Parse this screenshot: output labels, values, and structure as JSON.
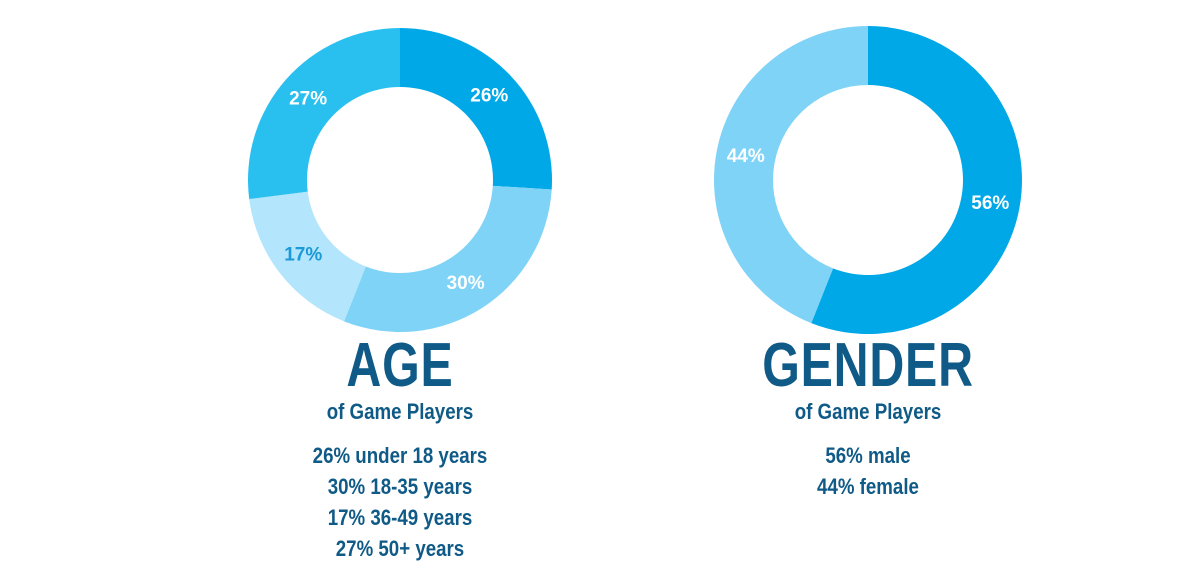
{
  "chart_data": [
    {
      "type": "pie",
      "variant": "donut",
      "title": "AGE",
      "subtitle": "of Game Players",
      "slices": [
        {
          "label": "26%",
          "value": 26,
          "color": "#00a8e8",
          "text_color": "#ffffff"
        },
        {
          "label": "30%",
          "value": 30,
          "color": "#7fd3f7",
          "text_color": "#ffffff"
        },
        {
          "label": "17%",
          "value": 17,
          "color": "#b3e5fc",
          "text_color": "#1a9ad6"
        },
        {
          "label": "27%",
          "value": 27,
          "color": "#29c0f0",
          "text_color": "#ffffff"
        }
      ],
      "legend_lines": [
        "26% under 18 years",
        "30% 18-35 years",
        "17% 36-49 years",
        "27% 50+ years"
      ]
    },
    {
      "type": "pie",
      "variant": "donut",
      "title": "GENDER",
      "subtitle": "of Game Players",
      "slices": [
        {
          "label": "56%",
          "value": 56,
          "color": "#00a8e8",
          "text_color": "#ffffff"
        },
        {
          "label": "44%",
          "value": 44,
          "color": "#7fd3f7",
          "text_color": "#ffffff"
        }
      ],
      "legend_lines": [
        "56% male",
        "44% female"
      ]
    }
  ]
}
